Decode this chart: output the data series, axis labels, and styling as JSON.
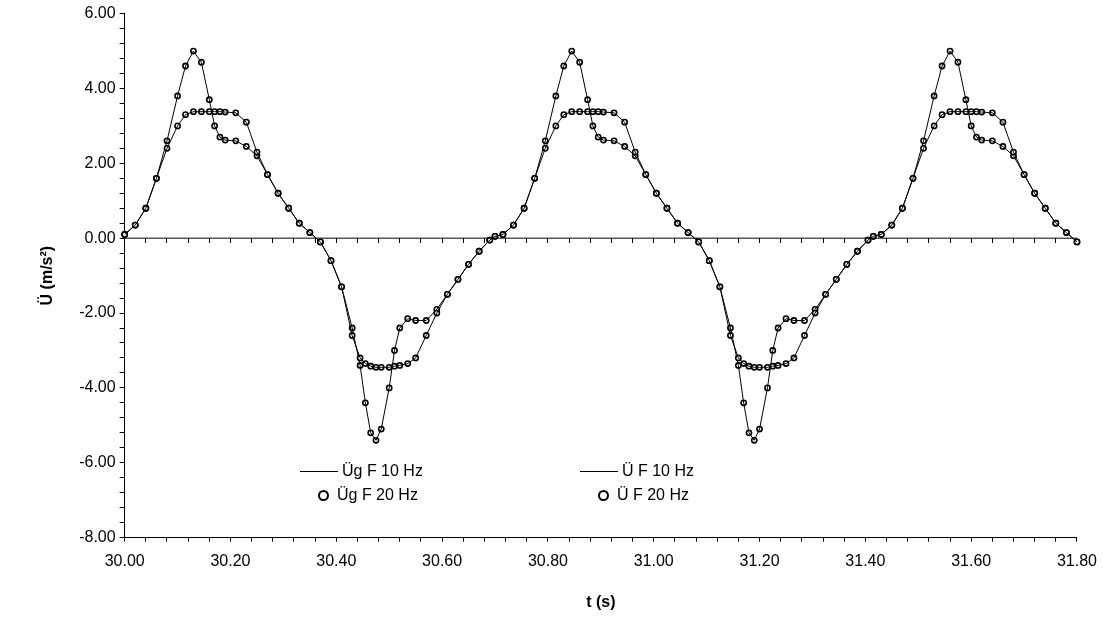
{
  "chart_data": {
    "type": "line",
    "xlabel": "t (s)",
    "ylabel": "Ü (m/s²)",
    "legend": "bottom",
    "x": [
      30.0,
      30.02,
      30.04,
      30.06,
      30.08,
      30.1,
      30.115,
      30.13,
      30.145,
      30.16,
      30.17,
      30.18,
      30.19,
      30.21,
      30.23,
      30.25,
      30.27,
      30.29,
      30.31,
      30.33,
      30.35,
      30.37,
      30.39,
      30.41,
      30.43,
      30.445,
      30.455,
      30.465,
      30.475,
      30.485,
      30.5,
      30.51,
      30.52,
      30.535,
      30.55,
      30.57,
      30.59,
      30.61,
      30.63,
      30.65,
      30.67,
      30.69,
      30.7,
      30.715,
      30.735,
      30.755,
      30.775,
      30.795,
      30.815,
      30.83,
      30.845,
      30.86,
      30.875,
      30.885,
      30.895,
      30.905,
      30.925,
      30.945,
      30.965,
      30.985,
      31.005,
      31.025,
      31.045,
      31.065,
      31.085,
      31.105,
      31.125,
      31.145,
      31.16,
      31.17,
      31.18,
      31.19,
      31.2,
      31.215,
      31.225,
      31.235,
      31.25,
      31.265,
      31.285,
      31.305,
      31.325,
      31.345,
      31.365,
      31.385,
      31.405,
      31.415,
      31.43,
      31.45,
      31.47,
      31.49,
      31.51,
      31.53,
      31.545,
      31.56,
      31.575,
      31.59,
      31.6,
      31.61,
      31.62,
      31.64,
      31.66,
      31.68,
      31.7,
      31.72,
      31.74,
      31.76,
      31.78,
      31.8
    ],
    "series": [
      {
        "name": "Üg F 10 Hz",
        "type": "line",
        "marker": "none",
        "color": "#000000",
        "values": [
          0.1,
          0.35,
          0.8,
          1.6,
          2.4,
          3.0,
          3.3,
          3.38,
          3.38,
          3.38,
          3.38,
          3.38,
          3.37,
          3.35,
          3.1,
          2.3,
          1.7,
          1.2,
          0.8,
          0.4,
          0.15,
          -0.1,
          -0.6,
          -1.3,
          -2.6,
          -3.2,
          -3.35,
          -3.42,
          -3.45,
          -3.45,
          -3.45,
          -3.42,
          -3.4,
          -3.35,
          -3.2,
          -2.6,
          -2.0,
          -1.5,
          -1.1,
          -0.7,
          -0.35,
          -0.05,
          0.05,
          0.1,
          0.35,
          0.8,
          1.6,
          2.4,
          3.0,
          3.3,
          3.38,
          3.38,
          3.38,
          3.38,
          3.38,
          3.37,
          3.35,
          3.1,
          2.3,
          1.7,
          1.2,
          0.8,
          0.4,
          0.15,
          -0.1,
          -0.6,
          -1.3,
          -2.6,
          -3.2,
          -3.35,
          -3.42,
          -3.45,
          -3.45,
          -3.45,
          -3.42,
          -3.4,
          -3.35,
          -3.2,
          -2.6,
          -2.0,
          -1.5,
          -1.1,
          -0.7,
          -0.35,
          -0.05,
          0.05,
          0.1,
          0.35,
          0.8,
          1.6,
          2.4,
          3.0,
          3.3,
          3.38,
          3.38,
          3.38,
          3.38,
          3.38,
          3.37,
          3.35,
          3.1,
          2.3,
          1.7,
          1.2,
          0.8,
          0.4,
          0.15,
          -0.1
        ]
      },
      {
        "name": "Üg F 20 Hz",
        "type": "scatter",
        "marker": "circle",
        "color": "#000000",
        "values": [
          0.1,
          0.35,
          0.8,
          1.6,
          2.4,
          3.0,
          3.3,
          3.38,
          3.38,
          3.38,
          3.38,
          3.38,
          3.37,
          3.35,
          3.1,
          2.3,
          1.7,
          1.2,
          0.8,
          0.4,
          0.15,
          -0.1,
          -0.6,
          -1.3,
          -2.6,
          -3.2,
          -3.35,
          -3.42,
          -3.45,
          -3.45,
          -3.45,
          -3.42,
          -3.4,
          -3.35,
          -3.2,
          -2.6,
          -2.0,
          -1.5,
          -1.1,
          -0.7,
          -0.35,
          -0.05,
          0.05,
          0.1,
          0.35,
          0.8,
          1.6,
          2.4,
          3.0,
          3.3,
          3.38,
          3.38,
          3.38,
          3.38,
          3.38,
          3.37,
          3.35,
          3.1,
          2.3,
          1.7,
          1.2,
          0.8,
          0.4,
          0.15,
          -0.1,
          -0.6,
          -1.3,
          -2.6,
          -3.2,
          -3.35,
          -3.42,
          -3.45,
          -3.45,
          -3.45,
          -3.42,
          -3.4,
          -3.35,
          -3.2,
          -2.6,
          -2.0,
          -1.5,
          -1.1,
          -0.7,
          -0.35,
          -0.05,
          0.05,
          0.1,
          0.35,
          0.8,
          1.6,
          2.4,
          3.0,
          3.3,
          3.38,
          3.38,
          3.38,
          3.38,
          3.38,
          3.37,
          3.35,
          3.1,
          2.3,
          1.7,
          1.2,
          0.8,
          0.4,
          0.15,
          -0.1
        ]
      },
      {
        "name": "Ü F 10 Hz",
        "type": "line",
        "marker": "none",
        "color": "#000000",
        "values": [
          0.1,
          0.35,
          0.8,
          1.6,
          2.6,
          3.8,
          4.6,
          5.0,
          4.7,
          3.7,
          3.0,
          2.7,
          2.62,
          2.6,
          2.45,
          2.2,
          1.7,
          1.2,
          0.8,
          0.4,
          0.15,
          -0.1,
          -0.6,
          -1.3,
          -2.4,
          -3.4,
          -4.4,
          -5.2,
          -5.4,
          -5.1,
          -4.0,
          -3.0,
          -2.4,
          -2.15,
          -2.2,
          -2.2,
          -1.9,
          -1.5,
          -1.1,
          -0.7,
          -0.35,
          -0.05,
          0.05,
          0.1,
          0.35,
          0.8,
          1.6,
          2.6,
          3.8,
          4.6,
          5.0,
          4.7,
          3.7,
          3.0,
          2.7,
          2.62,
          2.6,
          2.45,
          2.2,
          1.7,
          1.2,
          0.8,
          0.4,
          0.15,
          -0.1,
          -0.6,
          -1.3,
          -2.4,
          -3.4,
          -4.4,
          -5.2,
          -5.4,
          -5.1,
          -4.0,
          -3.0,
          -2.4,
          -2.15,
          -2.2,
          -2.2,
          -1.9,
          -1.5,
          -1.1,
          -0.7,
          -0.35,
          -0.05,
          0.05,
          0.1,
          0.35,
          0.8,
          1.6,
          2.6,
          3.8,
          4.6,
          5.0,
          4.7,
          3.7,
          3.0,
          2.7,
          2.62,
          2.6,
          2.45,
          2.2,
          1.7,
          1.2,
          0.8,
          0.4,
          0.15,
          -0.1
        ]
      },
      {
        "name": "Ü F 20 Hz",
        "type": "scatter",
        "marker": "circle",
        "color": "#000000",
        "values": [
          0.1,
          0.35,
          0.8,
          1.6,
          2.6,
          3.8,
          4.6,
          5.0,
          4.7,
          3.7,
          3.0,
          2.7,
          2.62,
          2.6,
          2.45,
          2.2,
          1.7,
          1.2,
          0.8,
          0.4,
          0.15,
          -0.1,
          -0.6,
          -1.3,
          -2.4,
          -3.4,
          -4.4,
          -5.2,
          -5.4,
          -5.1,
          -4.0,
          -3.0,
          -2.4,
          -2.15,
          -2.2,
          -2.2,
          -1.9,
          -1.5,
          -1.1,
          -0.7,
          -0.35,
          -0.05,
          0.05,
          0.1,
          0.35,
          0.8,
          1.6,
          2.6,
          3.8,
          4.6,
          5.0,
          4.7,
          3.7,
          3.0,
          2.7,
          2.62,
          2.6,
          2.45,
          2.2,
          1.7,
          1.2,
          0.8,
          0.4,
          0.15,
          -0.1,
          -0.6,
          -1.3,
          -2.4,
          -3.4,
          -4.4,
          -5.2,
          -5.4,
          -5.1,
          -4.0,
          -3.0,
          -2.4,
          -2.15,
          -2.2,
          -2.2,
          -1.9,
          -1.5,
          -1.1,
          -0.7,
          -0.35,
          -0.05,
          0.05,
          0.1,
          0.35,
          0.8,
          1.6,
          2.6,
          3.8,
          4.6,
          5.0,
          4.7,
          3.7,
          3.0,
          2.7,
          2.62,
          2.6,
          2.45,
          2.2,
          1.7,
          1.2,
          0.8,
          0.4,
          0.15,
          -0.1
        ]
      }
    ],
    "xlim": [
      30,
      31.8
    ],
    "xticks": [
      {
        "value": 30,
        "label": "30.00"
      },
      {
        "value": 30.04,
        "label": null
      },
      {
        "value": 30.08,
        "label": null
      },
      {
        "value": 30.12,
        "label": null
      },
      {
        "value": 30.16,
        "label": null
      },
      {
        "value": 30.2,
        "label": "30.20"
      },
      {
        "value": 30.24,
        "label": null
      },
      {
        "value": 30.28,
        "label": null
      },
      {
        "value": 30.32,
        "label": null
      },
      {
        "value": 30.36,
        "label": null
      },
      {
        "value": 30.4,
        "label": "30.40"
      },
      {
        "value": 30.44,
        "label": null
      },
      {
        "value": 30.48,
        "label": null
      },
      {
        "value": 30.52,
        "label": null
      },
      {
        "value": 30.56,
        "label": null
      },
      {
        "value": 30.6,
        "label": "30.60"
      },
      {
        "value": 30.64,
        "label": null
      },
      {
        "value": 30.68,
        "label": null
      },
      {
        "value": 30.72,
        "label": null
      },
      {
        "value": 30.76,
        "label": null
      },
      {
        "value": 30.8,
        "label": "30.80"
      },
      {
        "value": 30.84,
        "label": null
      },
      {
        "value": 30.88,
        "label": null
      },
      {
        "value": 30.92,
        "label": null
      },
      {
        "value": 30.96,
        "label": null
      },
      {
        "value": 31,
        "label": "31.00"
      },
      {
        "value": 31.04,
        "label": null
      },
      {
        "value": 31.08,
        "label": null
      },
      {
        "value": 31.12,
        "label": null
      },
      {
        "value": 31.16,
        "label": null
      },
      {
        "value": 31.2,
        "label": "31.20"
      },
      {
        "value": 31.24,
        "label": null
      },
      {
        "value": 31.28,
        "label": null
      },
      {
        "value": 31.32,
        "label": null
      },
      {
        "value": 31.36,
        "label": null
      },
      {
        "value": 31.4,
        "label": "31.40"
      },
      {
        "value": 31.44,
        "label": null
      },
      {
        "value": 31.48,
        "label": null
      },
      {
        "value": 31.52,
        "label": null
      },
      {
        "value": 31.56,
        "label": null
      },
      {
        "value": 31.6,
        "label": "31.60"
      },
      {
        "value": 31.64,
        "label": null
      },
      {
        "value": 31.68,
        "label": null
      },
      {
        "value": 31.72,
        "label": null
      },
      {
        "value": 31.76,
        "label": null
      },
      {
        "value": 31.8,
        "label": "31.80"
      }
    ],
    "ylim": [
      -8,
      6
    ],
    "yticks": [
      {
        "value": -8,
        "label": "-8.00"
      },
      {
        "value": -7.6,
        "label": null
      },
      {
        "value": -7.2,
        "label": null
      },
      {
        "value": -6.8,
        "label": null
      },
      {
        "value": -6.4,
        "label": null
      },
      {
        "value": -6,
        "label": "-6.00"
      },
      {
        "value": -5.6,
        "label": null
      },
      {
        "value": -5.2,
        "label": null
      },
      {
        "value": -4.8,
        "label": null
      },
      {
        "value": -4.4,
        "label": null
      },
      {
        "value": -4,
        "label": "-4.00"
      },
      {
        "value": -3.6,
        "label": null
      },
      {
        "value": -3.2,
        "label": null
      },
      {
        "value": -2.8,
        "label": null
      },
      {
        "value": -2.4,
        "label": null
      },
      {
        "value": -2,
        "label": "-2.00"
      },
      {
        "value": -1.6,
        "label": null
      },
      {
        "value": -1.2,
        "label": null
      },
      {
        "value": -0.8,
        "label": null
      },
      {
        "value": -0.4,
        "label": null
      },
      {
        "value": 0,
        "label": "0.00"
      },
      {
        "value": 0.4,
        "label": null
      },
      {
        "value": 0.8,
        "label": null
      },
      {
        "value": 1.2,
        "label": null
      },
      {
        "value": 1.6,
        "label": null
      },
      {
        "value": 2,
        "label": "2.00"
      },
      {
        "value": 2.4,
        "label": null
      },
      {
        "value": 2.8,
        "label": null
      },
      {
        "value": 3.2,
        "label": null
      },
      {
        "value": 3.6,
        "label": null
      },
      {
        "value": 4,
        "label": "4.00"
      },
      {
        "value": 4.4,
        "label": null
      },
      {
        "value": 4.8,
        "label": null
      },
      {
        "value": 5.2,
        "label": null
      },
      {
        "value": 5.6,
        "label": null
      },
      {
        "value": 6,
        "label": "6.00"
      }
    ],
    "ref_lines": [
      {
        "axis": "y",
        "value": 0,
        "color": "#000000"
      }
    ]
  }
}
